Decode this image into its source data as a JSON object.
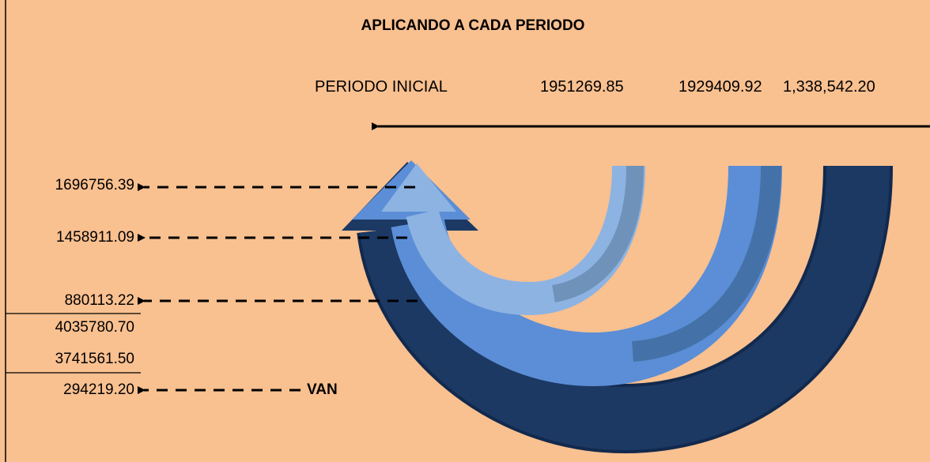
{
  "title": "APLICANDO A CADA PERIODO",
  "header": {
    "label": "PERIODO INICIAL",
    "values": [
      "1951269.85",
      "1929409.92",
      "1,338,542.20"
    ]
  },
  "results": [
    "1696756.39",
    "1458911.09",
    "880113.22",
    "4035780.70",
    "3741561.50",
    "294219.20"
  ],
  "van_label": "VAN"
}
